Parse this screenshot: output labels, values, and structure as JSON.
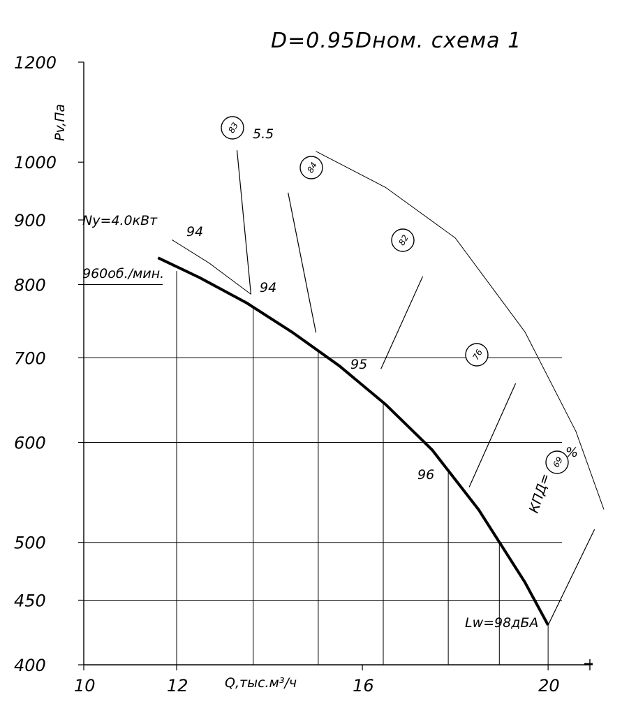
{
  "chart_data": {
    "type": "line",
    "title": "D=0.95Dном. схема 1",
    "xlabel": "Q,тыс.м³/ч",
    "ylabel": "Pv,Па",
    "x_ticks": [
      "10",
      "12",
      "16",
      "20"
    ],
    "y_ticks": [
      "400",
      "450",
      "500",
      "600",
      "700",
      "800",
      "900",
      "1000",
      "1200"
    ],
    "x_scale": "linear",
    "y_scale": "log",
    "xlim": [
      10,
      20.9
    ],
    "ylim": [
      400,
      1200
    ],
    "grid": true,
    "series": [
      {
        "x": [
          11.6,
          12.5,
          13.5,
          14.5,
          15.5,
          16.5,
          17.5,
          18.5,
          19.5,
          20.0
        ],
        "y": [
          840,
          810,
          774,
          733,
          690,
          643,
          592,
          531,
          465,
          430
        ]
      }
    ],
    "power_curve": {
      "x": [
        11.9,
        12.7,
        13.6,
        15.0,
        16.5,
        18.0,
        19.5,
        20.6,
        21.2
      ],
      "y": [
        868,
        832,
        786,
        1020,
        955,
        871,
        734,
        612,
        531
      ]
    },
    "efficiency_curves": [
      {
        "label": "83",
        "x": [
          13.6,
          13.3
        ],
        "y": [
          786,
          1022
        ]
      },
      {
        "label": "84",
        "x": [
          15.0,
          14.4
        ],
        "y": [
          733,
          946
        ]
      },
      {
        "label": "82",
        "x": [
          16.4,
          17.3
        ],
        "y": [
          686,
          812
        ]
      },
      {
        "label": "76",
        "x": [
          18.3,
          19.3
        ],
        "y": [
          553,
          668
        ]
      },
      {
        "label": "69",
        "x": [
          20.0,
          21.0
        ],
        "y": [
          430,
          512
        ]
      }
    ],
    "annotations": {
      "power_max": "5.5",
      "power_min": "Ny=4.0кВт",
      "speed": "960об./мин.",
      "sound_level": "Lw=98дБА",
      "efficiency_label": "КПД=",
      "efficiency_unit": "%",
      "sound_values": [
        "94",
        "94",
        "95",
        "96"
      ]
    }
  }
}
